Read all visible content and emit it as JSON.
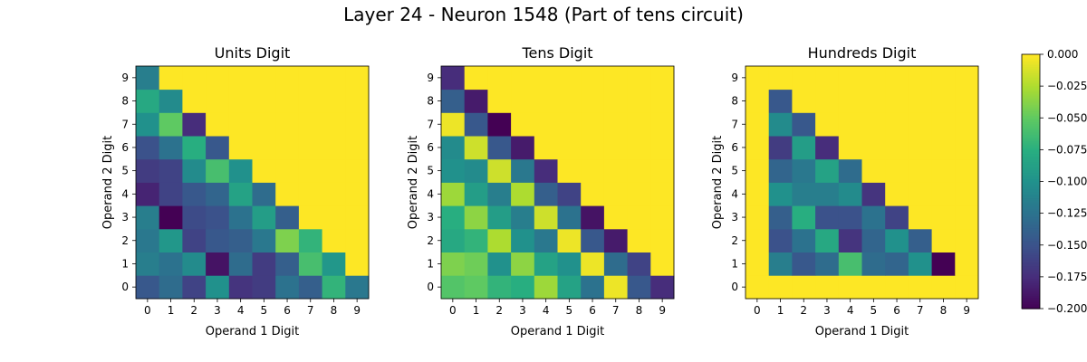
{
  "figure": {
    "title": "Layer 24 - Neuron 1548 (Part of tens circuit)"
  },
  "chart_data": [
    {
      "type": "heatmap",
      "title": "Units Digit",
      "xlabel": "Operand 1 Digit",
      "ylabel": "Operand 2 Digit",
      "x": [
        "0",
        "1",
        "2",
        "3",
        "4",
        "5",
        "6",
        "7",
        "8",
        "9"
      ],
      "y": [
        "0",
        "1",
        "2",
        "3",
        "4",
        "5",
        "6",
        "7",
        "8",
        "9"
      ],
      "y_origin": "bottom",
      "value_range": [
        -0.2,
        0.0
      ],
      "z": [
        [
          -0.145,
          -0.13,
          -0.16,
          -0.1,
          -0.17,
          -0.165,
          -0.125,
          -0.14,
          -0.07,
          -0.12
        ],
        [
          -0.115,
          -0.125,
          -0.105,
          -0.19,
          -0.13,
          -0.165,
          -0.14,
          -0.06,
          -0.095,
          0.0
        ],
        [
          -0.12,
          -0.095,
          -0.16,
          -0.145,
          -0.14,
          -0.12,
          -0.04,
          -0.07,
          0.0,
          0.0
        ],
        [
          -0.115,
          -0.2,
          -0.155,
          -0.15,
          -0.125,
          -0.09,
          -0.14,
          0.0,
          0.0,
          0.0
        ],
        [
          -0.18,
          -0.16,
          -0.145,
          -0.135,
          -0.085,
          -0.13,
          0.0,
          0.0,
          0.0,
          0.0
        ],
        [
          -0.165,
          -0.16,
          -0.105,
          -0.06,
          -0.1,
          0.0,
          0.0,
          0.0,
          0.0,
          0.0
        ],
        [
          -0.15,
          -0.125,
          -0.075,
          -0.145,
          0.0,
          0.0,
          0.0,
          0.0,
          0.0,
          0.0
        ],
        [
          -0.1,
          -0.05,
          -0.175,
          0.0,
          0.0,
          0.0,
          0.0,
          0.0,
          0.0,
          0.0
        ],
        [
          -0.08,
          -0.105,
          0.0,
          0.0,
          0.0,
          0.0,
          0.0,
          0.0,
          0.0,
          0.0
        ],
        [
          -0.115,
          0.0,
          0.0,
          0.0,
          0.0,
          0.0,
          0.0,
          0.0,
          0.0,
          0.0
        ]
      ]
    },
    {
      "type": "heatmap",
      "title": "Tens Digit",
      "xlabel": "Operand 1 Digit",
      "ylabel": "Operand 2 Digit",
      "x": [
        "0",
        "1",
        "2",
        "3",
        "4",
        "5",
        "6",
        "7",
        "8",
        "9"
      ],
      "y": [
        "0",
        "1",
        "2",
        "3",
        "4",
        "5",
        "6",
        "7",
        "8",
        "9"
      ],
      "y_origin": "bottom",
      "value_range": [
        -0.2,
        0.0
      ],
      "z": [
        [
          -0.055,
          -0.05,
          -0.07,
          -0.075,
          -0.03,
          -0.085,
          -0.125,
          -0.005,
          -0.145,
          -0.175
        ],
        [
          -0.04,
          -0.045,
          -0.1,
          -0.035,
          -0.085,
          -0.1,
          -0.005,
          -0.13,
          -0.16,
          0.0
        ],
        [
          -0.08,
          -0.07,
          -0.025,
          -0.1,
          -0.12,
          -0.005,
          -0.145,
          -0.185,
          0.0,
          0.0
        ],
        [
          -0.075,
          -0.035,
          -0.09,
          -0.115,
          -0.015,
          -0.125,
          -0.19,
          0.0,
          0.0,
          0.0
        ],
        [
          -0.03,
          -0.09,
          -0.115,
          -0.025,
          -0.14,
          -0.16,
          0.0,
          0.0,
          0.0,
          0.0
        ],
        [
          -0.1,
          -0.105,
          -0.015,
          -0.12,
          -0.175,
          0.0,
          0.0,
          0.0,
          0.0,
          0.0
        ],
        [
          -0.105,
          -0.015,
          -0.145,
          -0.185,
          0.0,
          0.0,
          0.0,
          0.0,
          0.0,
          0.0
        ],
        [
          -0.005,
          -0.145,
          -0.2,
          0.0,
          0.0,
          0.0,
          0.0,
          0.0,
          0.0,
          0.0
        ],
        [
          -0.14,
          -0.185,
          0.0,
          0.0,
          0.0,
          0.0,
          0.0,
          0.0,
          0.0,
          0.0
        ],
        [
          -0.175,
          0.0,
          0.0,
          0.0,
          0.0,
          0.0,
          0.0,
          0.0,
          0.0,
          0.0
        ]
      ]
    },
    {
      "type": "heatmap",
      "title": "Hundreds Digit",
      "xlabel": "Operand 1 Digit",
      "ylabel": "Operand 2 Digit",
      "x": [
        "0",
        "1",
        "2",
        "3",
        "4",
        "5",
        "6",
        "7",
        "8",
        "9"
      ],
      "y": [
        "0",
        "1",
        "2",
        "3",
        "4",
        "5",
        "6",
        "7",
        "8",
        "9"
      ],
      "y_origin": "bottom",
      "value_range": [
        -0.2,
        0.0
      ],
      "z": [
        [
          0.0,
          0.0,
          0.0,
          0.0,
          0.0,
          0.0,
          0.0,
          0.0,
          0.0,
          0.0
        ],
        [
          0.0,
          -0.115,
          -0.145,
          -0.13,
          -0.06,
          -0.13,
          -0.135,
          -0.1,
          -0.2,
          0.0
        ],
        [
          0.0,
          -0.15,
          -0.125,
          -0.08,
          -0.17,
          -0.135,
          -0.1,
          -0.14,
          0.0,
          0.0
        ],
        [
          0.0,
          -0.14,
          -0.075,
          -0.15,
          -0.15,
          -0.125,
          -0.16,
          0.0,
          0.0,
          0.0
        ],
        [
          0.0,
          -0.1,
          -0.115,
          -0.115,
          -0.105,
          -0.17,
          0.0,
          0.0,
          0.0,
          0.0
        ],
        [
          0.0,
          -0.135,
          -0.12,
          -0.085,
          -0.13,
          0.0,
          0.0,
          0.0,
          0.0,
          0.0
        ],
        [
          0.0,
          -0.165,
          -0.09,
          -0.175,
          0.0,
          0.0,
          0.0,
          0.0,
          0.0,
          0.0
        ],
        [
          0.0,
          -0.105,
          -0.145,
          0.0,
          0.0,
          0.0,
          0.0,
          0.0,
          0.0,
          0.0
        ],
        [
          0.0,
          -0.145,
          0.0,
          0.0,
          0.0,
          0.0,
          0.0,
          0.0,
          0.0,
          0.0
        ],
        [
          0.0,
          0.0,
          0.0,
          0.0,
          0.0,
          0.0,
          0.0,
          0.0,
          0.0,
          0.0
        ]
      ]
    }
  ],
  "colorbar": {
    "colormap": "viridis",
    "range": [
      -0.2,
      0.0
    ],
    "tick_values": [
      0.0,
      -0.025,
      -0.05,
      -0.075,
      -0.1,
      -0.125,
      -0.15,
      -0.175,
      -0.2
    ],
    "tick_labels": [
      "0.000",
      "−0.025",
      "−0.050",
      "−0.075",
      "−0.100",
      "−0.125",
      "−0.150",
      "−0.175",
      "−0.200"
    ]
  }
}
